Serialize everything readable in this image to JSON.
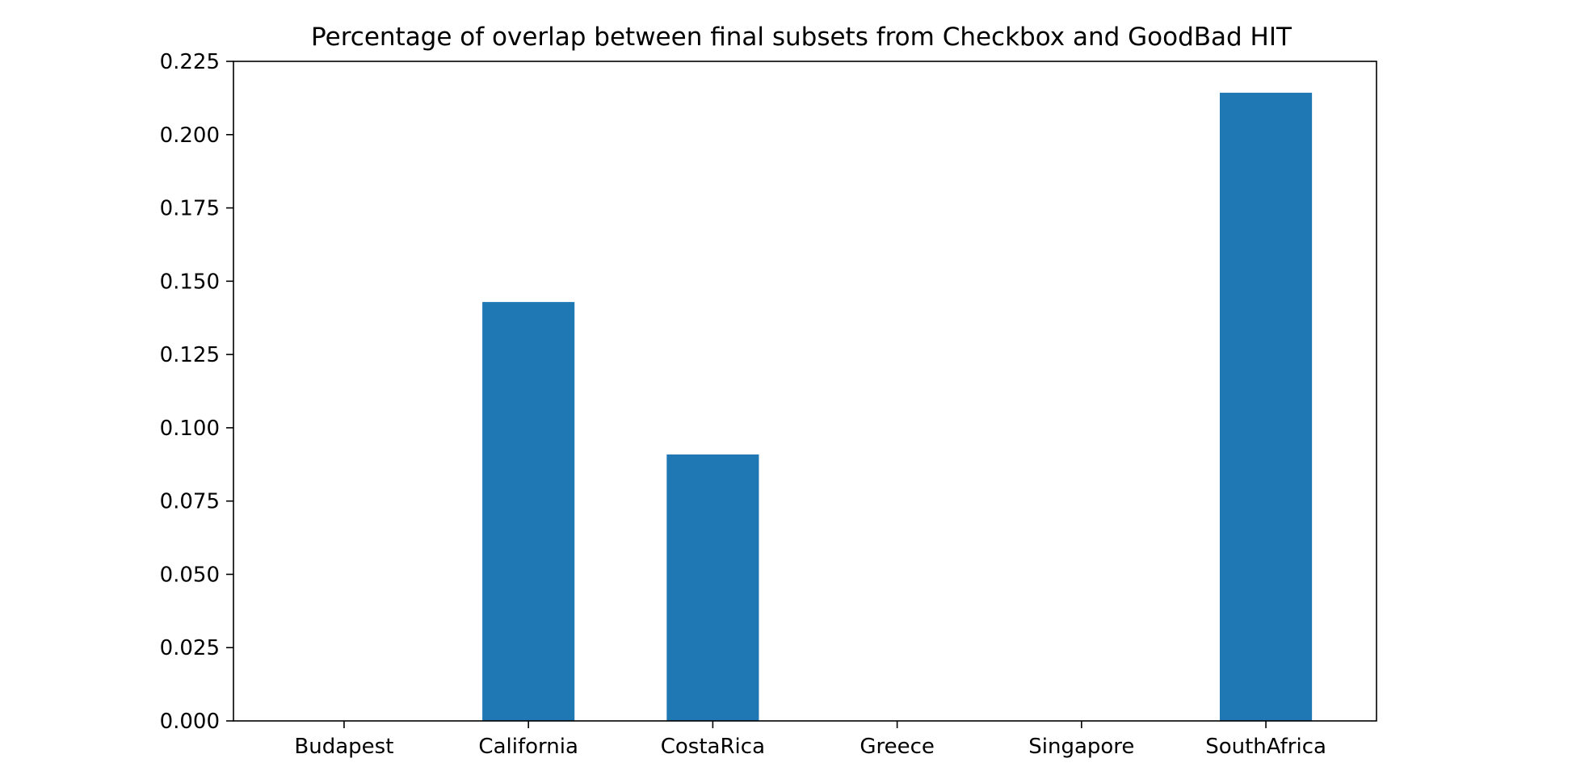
{
  "chart_data": {
    "type": "bar",
    "title": "Percentage of overlap between final subsets from Checkbox and GoodBad HIT",
    "xlabel": "",
    "ylabel": "",
    "categories": [
      "Budapest",
      "California",
      "CostaRica",
      "Greece",
      "Singapore",
      "SouthAfrica"
    ],
    "values": [
      0.0,
      0.1429,
      0.0909,
      0.0,
      0.0,
      0.2143
    ],
    "ylim": [
      0,
      0.225
    ],
    "yticks": [
      "0.000",
      "0.025",
      "0.050",
      "0.075",
      "0.100",
      "0.125",
      "0.150",
      "0.175",
      "0.200",
      "0.225"
    ],
    "bar_color": "#1f77b4",
    "grid": false,
    "legend": "none"
  }
}
